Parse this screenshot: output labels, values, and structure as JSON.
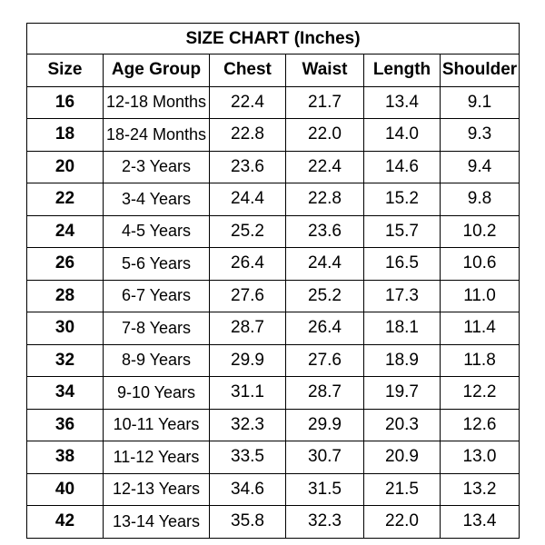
{
  "title": "SIZE CHART (Inches)",
  "columns": [
    "Size",
    "Age Group",
    "Chest",
    "Waist",
    "Length",
    "Shoulder"
  ],
  "rows": [
    [
      "16",
      "12-18 Months",
      "22.4",
      "21.7",
      "13.4",
      "9.1"
    ],
    [
      "18",
      "18-24 Months",
      "22.8",
      "22.0",
      "14.0",
      "9.3"
    ],
    [
      "20",
      "2-3 Years",
      "23.6",
      "22.4",
      "14.6",
      "9.4"
    ],
    [
      "22",
      "3-4 Years",
      "24.4",
      "22.8",
      "15.2",
      "9.8"
    ],
    [
      "24",
      "4-5 Years",
      "25.2",
      "23.6",
      "15.7",
      "10.2"
    ],
    [
      "26",
      "5-6 Years",
      "26.4",
      "24.4",
      "16.5",
      "10.6"
    ],
    [
      "28",
      "6-7 Years",
      "27.6",
      "25.2",
      "17.3",
      "11.0"
    ],
    [
      "30",
      "7-8 Years",
      "28.7",
      "26.4",
      "18.1",
      "11.4"
    ],
    [
      "32",
      "8-9 Years",
      "29.9",
      "27.6",
      "18.9",
      "11.8"
    ],
    [
      "34",
      "9-10 Years",
      "31.1",
      "28.7",
      "19.7",
      "12.2"
    ],
    [
      "36",
      "10-11 Years",
      "32.3",
      "29.9",
      "20.3",
      "12.6"
    ],
    [
      "38",
      "11-12 Years",
      "33.5",
      "30.7",
      "20.9",
      "13.0"
    ],
    [
      "40",
      "12-13 Years",
      "34.6",
      "31.5",
      "21.5",
      "13.2"
    ],
    [
      "42",
      "13-14 Years",
      "35.8",
      "32.3",
      "22.0",
      "13.4"
    ]
  ]
}
